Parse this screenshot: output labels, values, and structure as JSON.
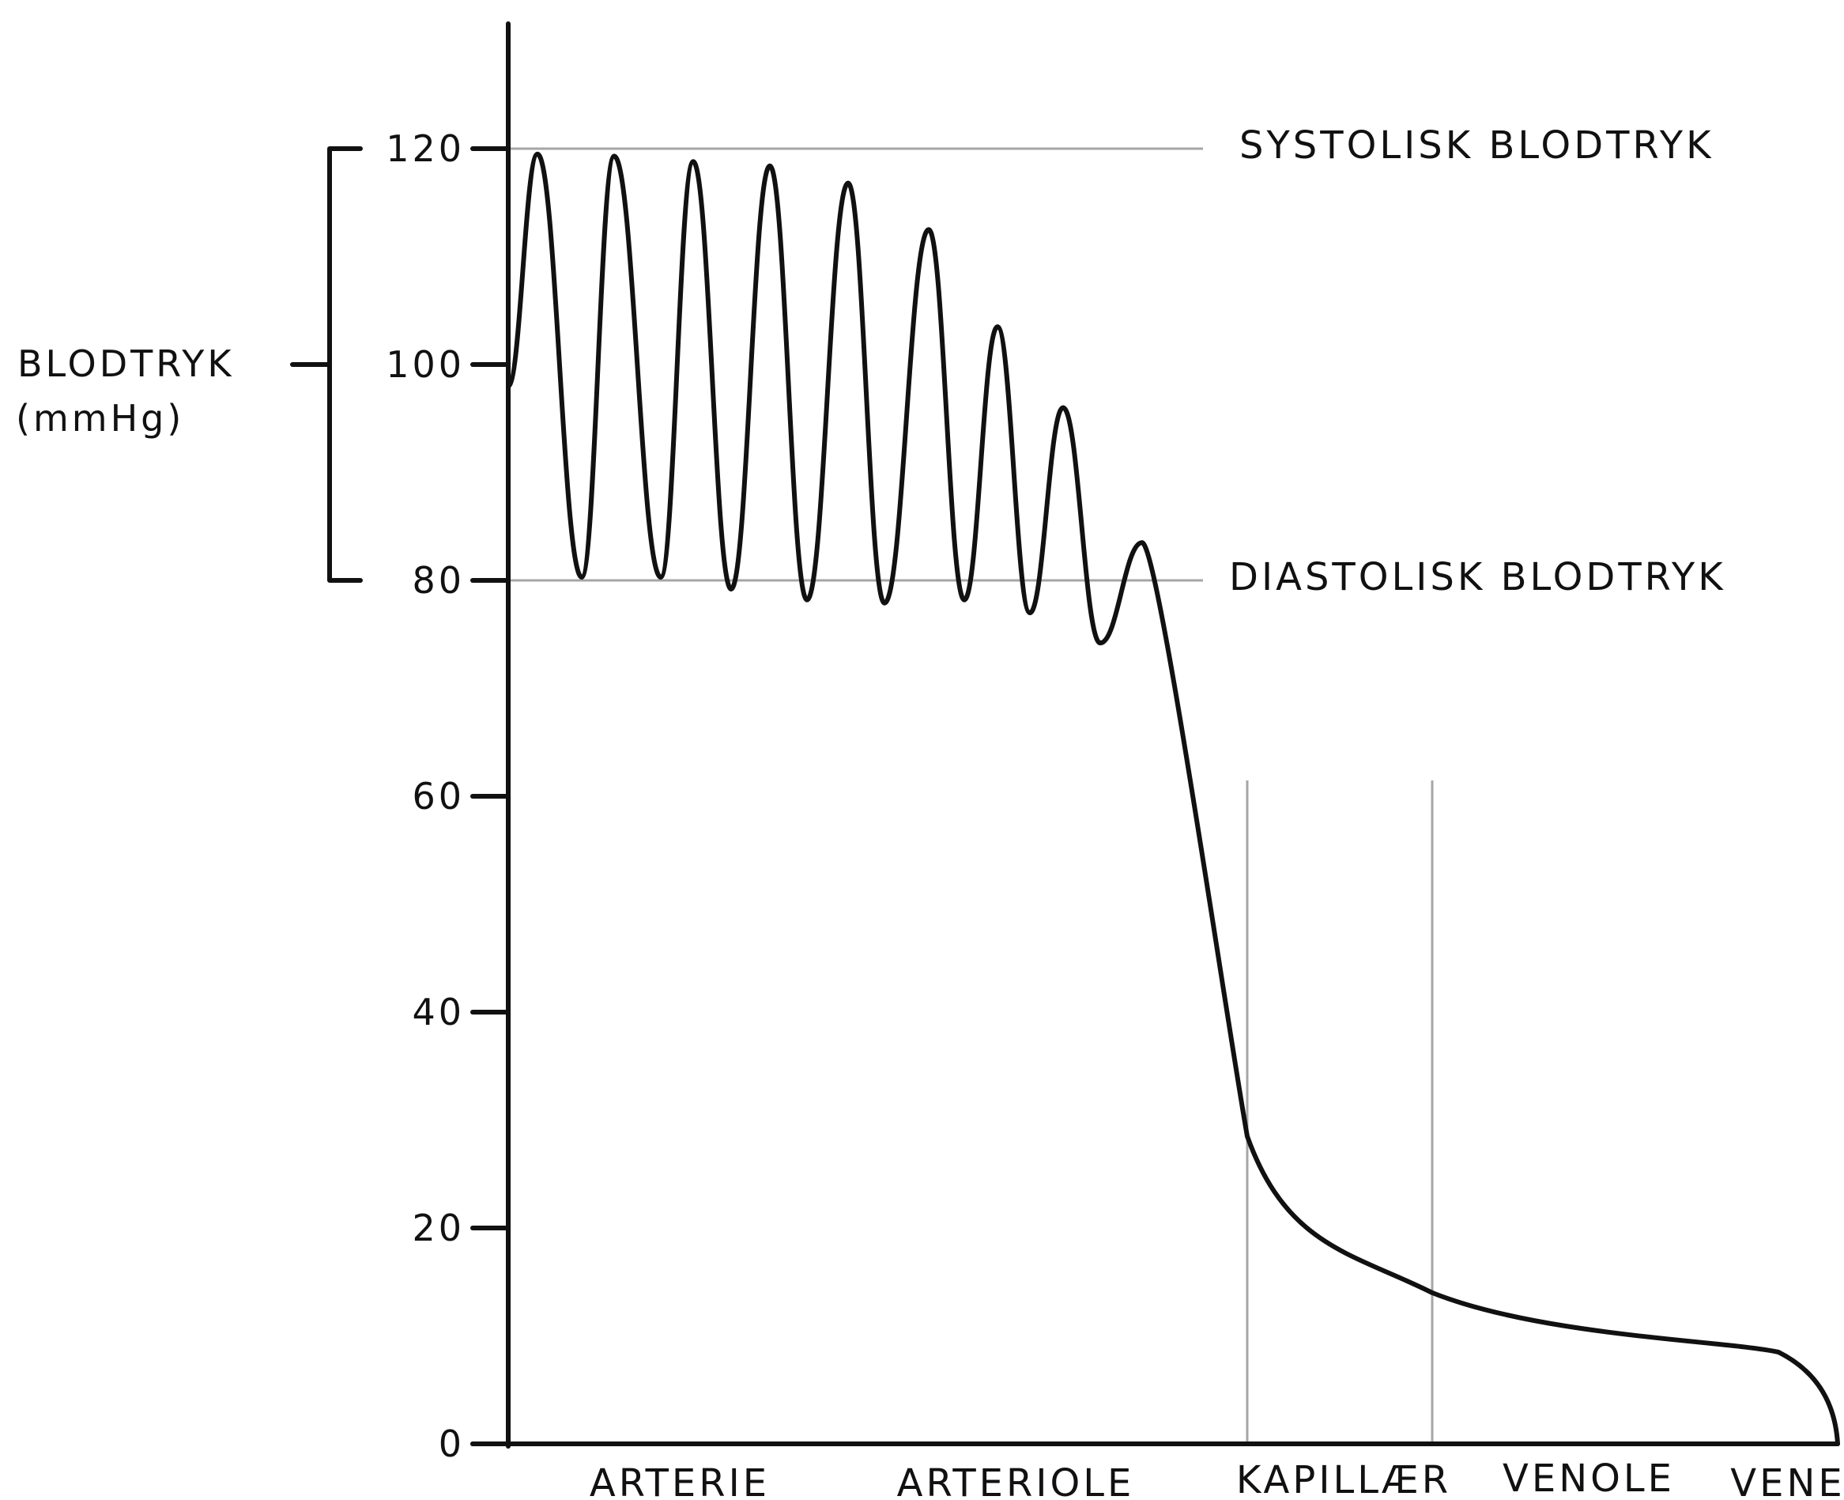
{
  "chart_data": {
    "type": "line",
    "title": "",
    "ylabel": "BLODTRYK",
    "yunit": "(mmHg)",
    "ylim": [
      0,
      120
    ],
    "yticks": [
      "0",
      "20",
      "40",
      "60",
      "80",
      "100",
      "120"
    ],
    "grid": false,
    "legend": "none",
    "reference_lines": [
      {
        "value": 120,
        "label": "SYSTOLISK BLODTRYK"
      },
      {
        "value": 80,
        "label": "DIASTOLISK BLODTRYK"
      }
    ],
    "categories": [
      "ARTERIE",
      "ARTERIOLE",
      "KAPILLÆR",
      "VENOLE",
      "VENE"
    ],
    "pressure_curve": {
      "oscillation_peaks": [
        119.5,
        119.3,
        118.8,
        118.4,
        116.8,
        112.5,
        103.5,
        96.0,
        83.5
      ],
      "oscillation_troughs": [
        80.3,
        80.3,
        79.2,
        78.2,
        77.9,
        78.2,
        77.0,
        74.2
      ],
      "capillary_entry": 28.5,
      "capillary_exit": 14.0,
      "venule_exit": 8.5,
      "vein_end": 0
    },
    "region_boundaries": [
      "KAPILLÆR",
      "VENOLE"
    ]
  },
  "colors": {
    "curve": "#111111",
    "axis": "#111111",
    "reference_line": "#a6a6a6"
  }
}
